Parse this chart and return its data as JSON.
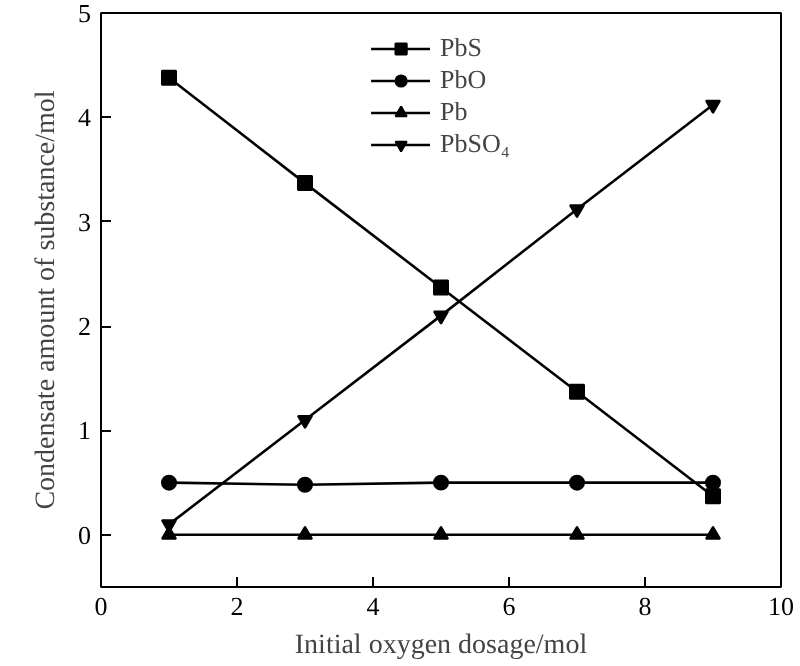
{
  "chart_data": {
    "type": "line",
    "xlabel": "Initial oxygen dosage/mol",
    "ylabel": "Condensate amount of substance/mol",
    "x": [
      1,
      3,
      5,
      7,
      9
    ],
    "series": [
      {
        "name": "PbS",
        "color": "#000000",
        "marker": "square",
        "values": [
          4.38,
          3.37,
          2.37,
          1.37,
          0.37
        ]
      },
      {
        "name": "PbO",
        "color": "#000000",
        "marker": "circle",
        "values": [
          0.5,
          0.48,
          0.5,
          0.5,
          0.5
        ]
      },
      {
        "name": "Pb",
        "color": "#000000",
        "marker": "triangle",
        "values": [
          0,
          0,
          0,
          0,
          0
        ]
      },
      {
        "name": "PbSO₄",
        "color": "#000000",
        "marker": "triangle",
        "values": [
          0.1,
          1.1,
          2.1,
          3.12,
          4.12
        ]
      }
    ],
    "xlim": [
      0,
      10
    ],
    "xticks": [
      0,
      2,
      4,
      6,
      8,
      10
    ],
    "ylim": [
      -0.5,
      5
    ],
    "yticks": [
      0,
      1,
      2,
      3,
      4,
      5
    ],
    "grid": false,
    "legend": "top",
    "line_style": "solid"
  }
}
